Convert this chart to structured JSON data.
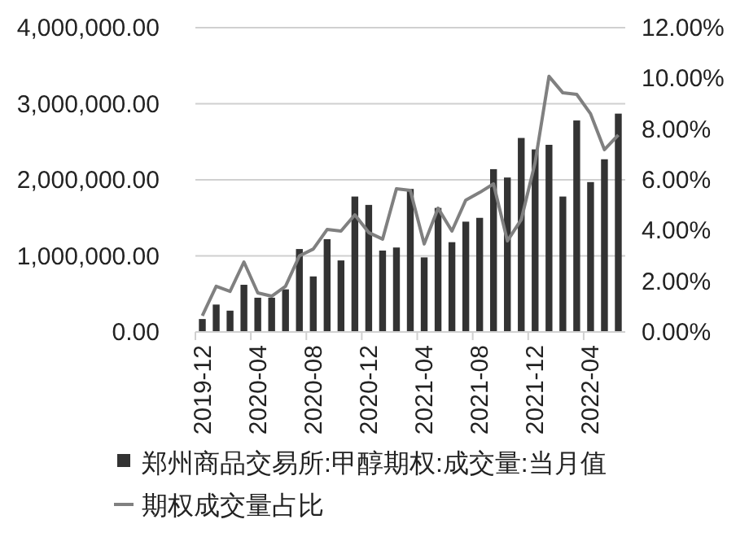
{
  "chart_data": {
    "type": "bar",
    "categories": [
      "2019-12",
      null,
      null,
      null,
      "2020-04",
      null,
      null,
      null,
      "2020-08",
      null,
      null,
      null,
      "2020-12",
      null,
      null,
      null,
      "2021-04",
      null,
      null,
      null,
      "2021-08",
      null,
      null,
      null,
      "2021-12",
      null,
      null,
      null,
      "2022-04",
      null,
      null
    ],
    "series": [
      {
        "name": "郑州商品交易所:甲醇期权:成交量:当月值",
        "color": "#333333",
        "values": [
          170000,
          360000,
          280000,
          620000,
          450000,
          450000,
          560000,
          1090000,
          730000,
          1220000,
          940000,
          1780000,
          1670000,
          1070000,
          1110000,
          1880000,
          980000,
          1630000,
          1180000,
          1450000,
          1500000,
          2140000,
          2030000,
          2550000,
          2400000,
          2460000,
          1780000,
          2780000,
          1970000,
          2270000,
          2870000
        ]
      },
      {
        "name": "期权成交量占比",
        "type": "line",
        "axis": "y2",
        "color": "#808080",
        "values": [
          0.64,
          1.8,
          1.6,
          2.76,
          1.54,
          1.41,
          1.8,
          3.0,
          3.27,
          4.04,
          3.98,
          4.62,
          3.92,
          3.66,
          5.65,
          5.58,
          3.47,
          4.88,
          3.98,
          5.2,
          5.5,
          5.84,
          3.59,
          4.43,
          6.68,
          10.08,
          9.43,
          9.37,
          8.6,
          7.19,
          7.77
        ]
      }
    ],
    "ylim": [
      0,
      4000000
    ],
    "yticks": [
      {
        "value": 0,
        "label": "0.00"
      },
      {
        "value": 1000000,
        "label": "1,000,000.00"
      },
      {
        "value": 2000000,
        "label": "2,000,000.00"
      },
      {
        "value": 3000000,
        "label": "3,000,000.00"
      },
      {
        "value": 4000000,
        "label": "4,000,000.00"
      }
    ],
    "y2lim": [
      0,
      12
    ],
    "y2ticks": [
      {
        "value": 0,
        "label": "0.00%"
      },
      {
        "value": 2,
        "label": "2.00%"
      },
      {
        "value": 4,
        "label": "4.00%"
      },
      {
        "value": 6,
        "label": "6.00%"
      },
      {
        "value": 8,
        "label": "8.00%"
      },
      {
        "value": 10,
        "label": "10.00%"
      },
      {
        "value": 12,
        "label": "12.00%"
      }
    ],
    "grid": "y",
    "legend": "bottom"
  }
}
